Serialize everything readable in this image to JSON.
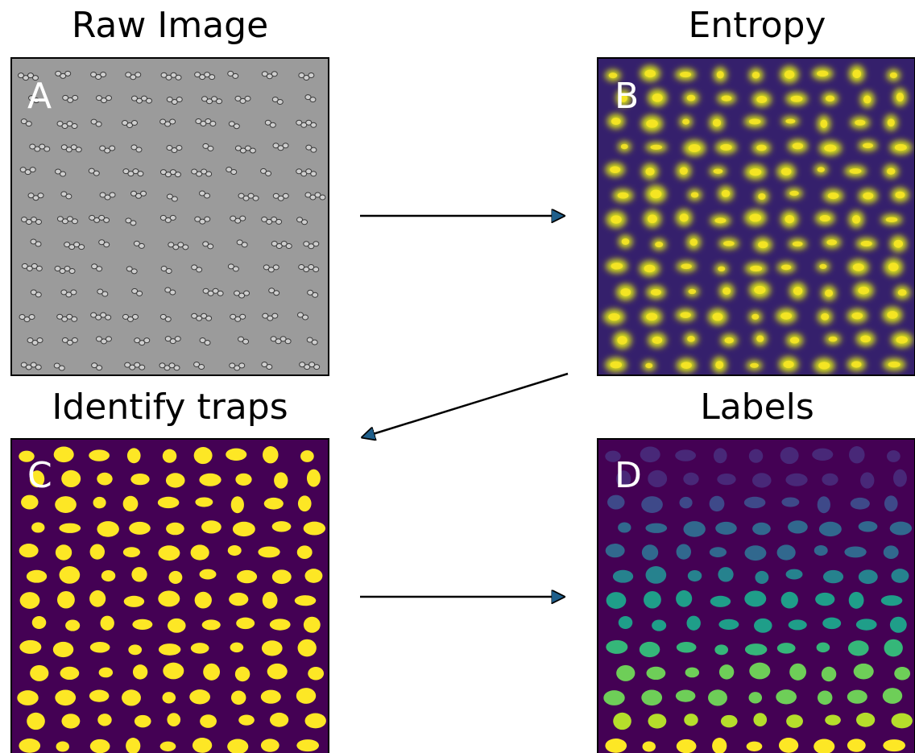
{
  "panels": [
    {
      "title": "Raw Image",
      "letter": "A"
    },
    {
      "title": "Entropy",
      "letter": "B"
    },
    {
      "title": "Identify traps",
      "letter": "C"
    },
    {
      "title": "Labels",
      "letter": "D"
    }
  ]
}
